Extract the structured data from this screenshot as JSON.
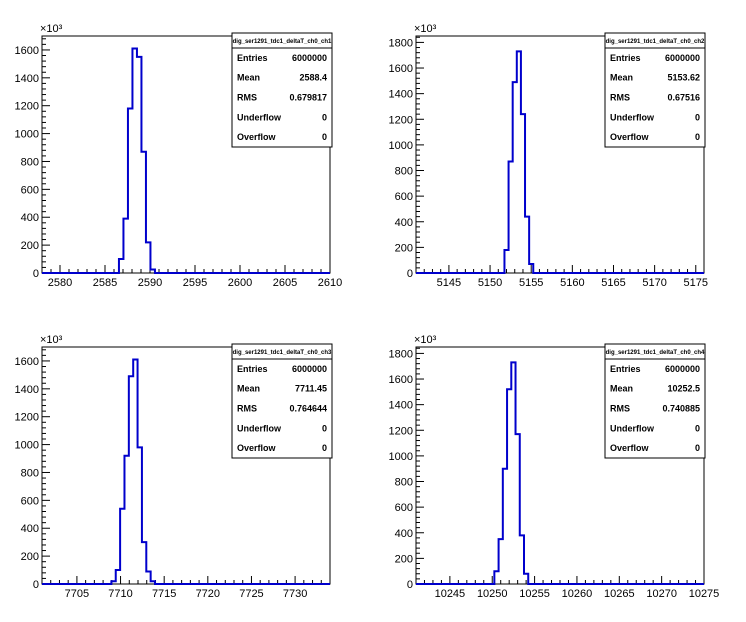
{
  "chart_data": [
    {
      "type": "histogram",
      "ylabel_exponent": "×10³",
      "xlim": [
        2578,
        2610
      ],
      "xticks": [
        2580,
        2585,
        2590,
        2595,
        2600,
        2605,
        2610
      ],
      "ylim": [
        0,
        1700
      ],
      "yticks": [
        0,
        200,
        400,
        600,
        800,
        1000,
        1200,
        1400,
        1600
      ],
      "bins": [
        {
          "x": 2586.3,
          "y": 0
        },
        {
          "x": 2586.8,
          "y": 100
        },
        {
          "x": 2587.3,
          "y": 390
        },
        {
          "x": 2587.8,
          "y": 1180
        },
        {
          "x": 2588.3,
          "y": 1610
        },
        {
          "x": 2588.8,
          "y": 1550
        },
        {
          "x": 2589.3,
          "y": 870
        },
        {
          "x": 2589.8,
          "y": 220
        },
        {
          "x": 2590.3,
          "y": 25
        },
        {
          "x": 2590.8,
          "y": 0
        }
      ],
      "stats": {
        "title": "dig_ser1291_tdc1_deltaT_ch0_ch1",
        "rows": [
          {
            "label": "Entries",
            "value": "6000000"
          },
          {
            "label": "Mean",
            "value": "2588.4"
          },
          {
            "label": "RMS",
            "value": "0.679817"
          },
          {
            "label": "Underflow",
            "value": "0"
          },
          {
            "label": "Overflow",
            "value": "0"
          }
        ]
      }
    },
    {
      "type": "histogram",
      "ylabel_exponent": "×10³",
      "xlim": [
        5141,
        5176
      ],
      "xticks": [
        5145,
        5150,
        5155,
        5160,
        5165,
        5170,
        5175
      ],
      "ylim": [
        0,
        1850
      ],
      "yticks": [
        0,
        200,
        400,
        600,
        800,
        1000,
        1200,
        1400,
        1600,
        1800
      ],
      "bins": [
        {
          "x": 5151.5,
          "y": 0
        },
        {
          "x": 5152.0,
          "y": 180
        },
        {
          "x": 5152.5,
          "y": 870
        },
        {
          "x": 5153.0,
          "y": 1490
        },
        {
          "x": 5153.5,
          "y": 1730
        },
        {
          "x": 5154.0,
          "y": 1240
        },
        {
          "x": 5154.5,
          "y": 440
        },
        {
          "x": 5155.0,
          "y": 70
        },
        {
          "x": 5155.5,
          "y": 0
        }
      ],
      "stats": {
        "title": "dig_ser1291_tdc1_deltaT_ch0_ch2",
        "rows": [
          {
            "label": "Entries",
            "value": "6000000"
          },
          {
            "label": "Mean",
            "value": "5153.62"
          },
          {
            "label": "RMS",
            "value": "0.67516"
          },
          {
            "label": "Underflow",
            "value": "0"
          },
          {
            "label": "Overflow",
            "value": "0"
          }
        ]
      }
    },
    {
      "type": "histogram",
      "ylabel_exponent": "×10³",
      "xlim": [
        7701,
        7734
      ],
      "xticks": [
        7705,
        7710,
        7715,
        7720,
        7725,
        7730
      ],
      "ylim": [
        0,
        1700
      ],
      "yticks": [
        0,
        200,
        400,
        600,
        800,
        1000,
        1200,
        1400,
        1600
      ],
      "bins": [
        {
          "x": 7708.7,
          "y": 0
        },
        {
          "x": 7709.2,
          "y": 20
        },
        {
          "x": 7709.7,
          "y": 100
        },
        {
          "x": 7710.2,
          "y": 540
        },
        {
          "x": 7710.7,
          "y": 920
        },
        {
          "x": 7711.2,
          "y": 1490
        },
        {
          "x": 7711.7,
          "y": 1610
        },
        {
          "x": 7712.2,
          "y": 980
        },
        {
          "x": 7712.7,
          "y": 300
        },
        {
          "x": 7713.2,
          "y": 90
        },
        {
          "x": 7713.7,
          "y": 20
        },
        {
          "x": 7714.2,
          "y": 0
        }
      ],
      "stats": {
        "title": "dig_ser1291_tdc1_deltaT_ch0_ch3",
        "rows": [
          {
            "label": "Entries",
            "value": "6000000"
          },
          {
            "label": "Mean",
            "value": "7711.45"
          },
          {
            "label": "RMS",
            "value": "0.764644"
          },
          {
            "label": "Underflow",
            "value": "0"
          },
          {
            "label": "Overflow",
            "value": "0"
          }
        ]
      }
    },
    {
      "type": "histogram",
      "ylabel_exponent": "×10³",
      "xlim": [
        10241,
        10275
      ],
      "xticks": [
        10245,
        10250,
        10255,
        10260,
        10265,
        10270,
        10275
      ],
      "ylim": [
        0,
        1850
      ],
      "yticks": [
        0,
        200,
        400,
        600,
        800,
        1000,
        1200,
        1400,
        1600,
        1800
      ],
      "bins": [
        {
          "x": 10250.0,
          "y": 0
        },
        {
          "x": 10250.5,
          "y": 100
        },
        {
          "x": 10251.0,
          "y": 350
        },
        {
          "x": 10251.5,
          "y": 900
        },
        {
          "x": 10252.0,
          "y": 1520
        },
        {
          "x": 10252.5,
          "y": 1730
        },
        {
          "x": 10253.0,
          "y": 1170
        },
        {
          "x": 10253.5,
          "y": 380
        },
        {
          "x": 10254.0,
          "y": 80
        },
        {
          "x": 10254.5,
          "y": 0
        }
      ],
      "stats": {
        "title": "dig_ser1291_tdc1_deltaT_ch0_ch4",
        "rows": [
          {
            "label": "Entries",
            "value": "6000000"
          },
          {
            "label": "Mean",
            "value": "10252.5"
          },
          {
            "label": "RMS",
            "value": "0.740885"
          },
          {
            "label": "Underflow",
            "value": "0"
          },
          {
            "label": "Overflow",
            "value": "0"
          }
        ]
      }
    }
  ]
}
